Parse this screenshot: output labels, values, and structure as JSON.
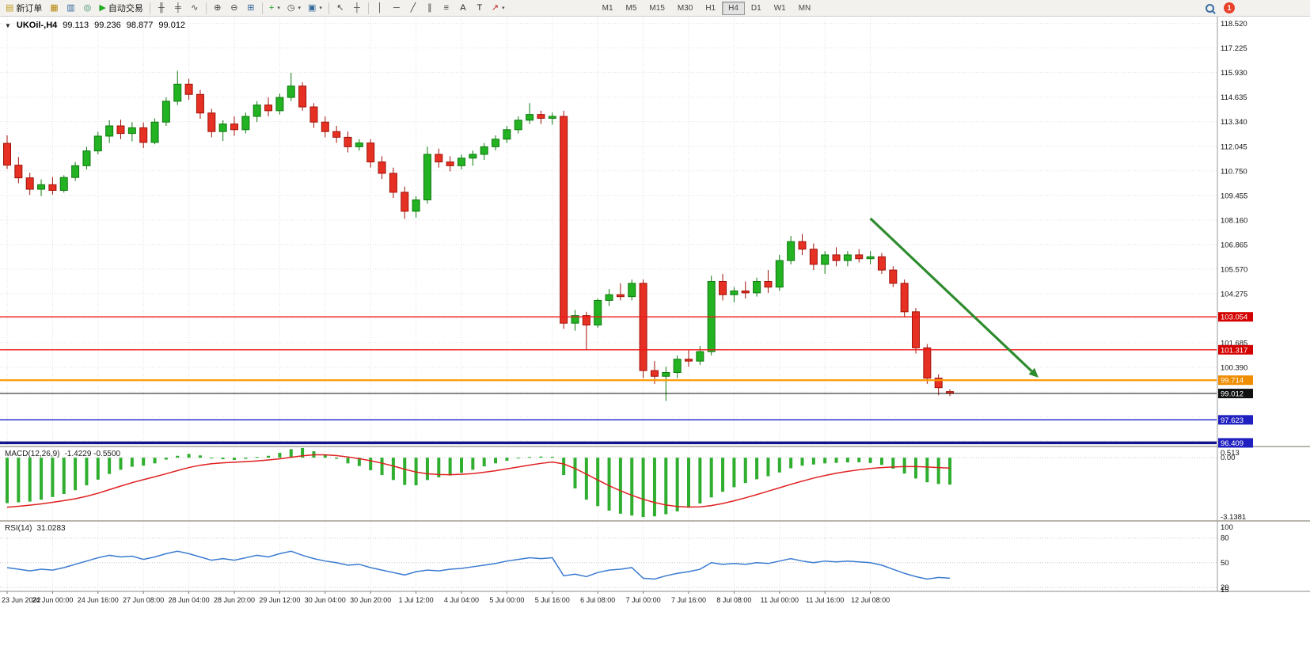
{
  "toolbar": {
    "timeframes": [
      "M1",
      "M5",
      "M15",
      "M30",
      "H1",
      "H4",
      "D1",
      "W1",
      "MN"
    ],
    "active_timeframe": "H4",
    "notification_count": "1",
    "buttons": [
      {
        "name": "new-order-button",
        "icon": "new-order-icon",
        "glyph": "▤",
        "color": "#c09a1a",
        "label": "新订单"
      },
      {
        "name": "charts-profile-button",
        "icon": "profiles-icon",
        "glyph": "▦",
        "color": "#b8860b"
      },
      {
        "name": "market-watch-button",
        "icon": "market-watch-icon",
        "glyph": "▥",
        "color": "#33669a"
      },
      {
        "name": "navigator-button",
        "icon": "navigator-icon",
        "glyph": "◎",
        "color": "#2e8b57"
      },
      {
        "name": "autotrading-button",
        "icon": "autotrading-play-icon",
        "glyph": "▶",
        "color": "#1faa1f",
        "label": "自动交易"
      },
      {
        "sep": true
      },
      {
        "name": "bar-chart-button",
        "icon": "bar-chart-icon",
        "glyph": "╫",
        "color": "#444"
      },
      {
        "name": "candlestick-chart-button",
        "icon": "candlestick-icon",
        "glyph": "╪",
        "color": "#444"
      },
      {
        "name": "line-chart-button",
        "icon": "line-chart-icon",
        "glyph": "∿",
        "color": "#444"
      },
      {
        "sep": true
      },
      {
        "name": "zoom-in-button",
        "icon": "zoom-in-icon",
        "glyph": "⊕",
        "color": "#444"
      },
      {
        "name": "zoom-out-button",
        "icon": "zoom-out-icon",
        "glyph": "⊖",
        "color": "#444"
      },
      {
        "name": "tile-windows-button",
        "icon": "tile-windows-icon",
        "glyph": "⊞",
        "color": "#33669a"
      },
      {
        "sep": true
      },
      {
        "name": "indicators-button",
        "icon": "indicators-plus-icon",
        "glyph": "+",
        "color": "#1f9e1f",
        "dd": true
      },
      {
        "name": "periods-button",
        "icon": "clock-icon",
        "glyph": "◷",
        "color": "#444",
        "dd": true
      },
      {
        "name": "templates-button",
        "icon": "template-icon",
        "glyph": "▣",
        "color": "#33669a",
        "dd": true
      },
      {
        "sep": true
      },
      {
        "name": "cursor-button",
        "icon": "cursor-arrow-icon",
        "glyph": "↖",
        "color": "#444"
      },
      {
        "name": "crosshair-button",
        "icon": "crosshair-icon",
        "glyph": "┼",
        "color": "#444"
      },
      {
        "sep": true
      },
      {
        "name": "vertical-line-button",
        "icon": "vertical-line-icon",
        "glyph": "│",
        "color": "#444"
      },
      {
        "name": "horizontal-line-button",
        "icon": "horizontal-line-icon",
        "glyph": "─",
        "color": "#444"
      },
      {
        "name": "trendline-button",
        "icon": "trendline-icon",
        "glyph": "╱",
        "color": "#444"
      },
      {
        "name": "channel-button",
        "icon": "equidistant-channel-icon",
        "glyph": "∥",
        "color": "#444"
      },
      {
        "name": "fibonacci-button",
        "icon": "fibonacci-icon",
        "glyph": "≡",
        "color": "#444"
      },
      {
        "name": "text-button",
        "icon": "text-a-icon",
        "glyph": "A",
        "color": "#222"
      },
      {
        "name": "text-label-button",
        "icon": "text-label-icon",
        "glyph": "T",
        "color": "#222"
      },
      {
        "name": "shapes-button",
        "icon": "arrow-shapes-icon",
        "glyph": "↗",
        "color": "#bb2222",
        "dd": true
      }
    ]
  },
  "chart_data": {
    "type": "candlestick",
    "header": {
      "collapse_glyph": "▼",
      "symbol_period": "UKOil-,H4",
      "open": "99.113",
      "high": "99.236",
      "low": "98.877",
      "close": "99.012"
    },
    "price_axis": {
      "min": 96.26,
      "max": 118.88,
      "gridline_step": 1.295,
      "gridlines": [
        118.52,
        117.225,
        115.93,
        114.635,
        113.34,
        112.045,
        110.75,
        109.455,
        108.16,
        106.865,
        105.57,
        104.275,
        102.98,
        101.685,
        100.39,
        99.095,
        97.8,
        96.505
      ],
      "labels": [
        "118.520",
        "117.225",
        "115.930",
        "114.635",
        "113.340",
        "112.045",
        "110.750",
        "109.455",
        "108.160",
        "106.865",
        "105.570",
        "104.275",
        "101.685",
        "100.390"
      ]
    },
    "x_axis": {
      "label_every_n_bars": 4,
      "labels": [
        "23 Jun 2022",
        "24 Jun 00:00",
        "24 Jun 16:00",
        "27 Jun 08:00",
        "28 Jun 04:00",
        "28 Jun 20:00",
        "29 Jun 12:00",
        "30 Jun 04:00",
        "30 Jun 20:00",
        "1 Jul 12:00",
        "4 Jul 04:00",
        "5 Jul 00:00",
        "5 Jul 16:00",
        "6 Jul 08:00",
        "7 Jul 00:00",
        "7 Jul 16:00",
        "8 Jul 08:00",
        "11 Jul 00:00",
        "11 Jul 16:00",
        "12 Jul 08:00"
      ]
    },
    "candle_colors": {
      "up_fill": "#22b222",
      "up_border": "#0e7a0e",
      "down_fill": "#e63023",
      "down_border": "#a01208"
    },
    "ohlc": [
      [
        112.2,
        112.62,
        110.85,
        111.05
      ],
      [
        111.05,
        111.48,
        110.1,
        110.38
      ],
      [
        110.38,
        110.65,
        109.48,
        109.78
      ],
      [
        109.78,
        110.3,
        109.42,
        110.02
      ],
      [
        110.02,
        110.42,
        109.5,
        109.72
      ],
      [
        109.72,
        110.52,
        109.6,
        110.4
      ],
      [
        110.4,
        111.22,
        110.22,
        111.02
      ],
      [
        111.02,
        112.02,
        110.82,
        111.8
      ],
      [
        111.8,
        112.8,
        111.62,
        112.58
      ],
      [
        112.58,
        113.42,
        112.22,
        113.12
      ],
      [
        113.12,
        113.45,
        112.42,
        112.72
      ],
      [
        112.72,
        113.32,
        112.3,
        113.02
      ],
      [
        113.02,
        113.3,
        111.95,
        112.25
      ],
      [
        112.25,
        113.52,
        112.15,
        113.32
      ],
      [
        113.32,
        114.62,
        113.12,
        114.42
      ],
      [
        114.42,
        116.02,
        114.22,
        115.32
      ],
      [
        115.32,
        115.6,
        114.5,
        114.78
      ],
      [
        114.78,
        115.02,
        113.5,
        113.8
      ],
      [
        113.8,
        114.02,
        112.52,
        112.82
      ],
      [
        112.82,
        113.42,
        112.32,
        113.22
      ],
      [
        113.22,
        113.62,
        112.6,
        112.92
      ],
      [
        112.92,
        113.82,
        112.72,
        113.62
      ],
      [
        113.62,
        114.42,
        113.32,
        114.22
      ],
      [
        114.22,
        114.62,
        113.62,
        113.92
      ],
      [
        113.92,
        114.82,
        113.72,
        114.62
      ],
      [
        114.62,
        115.92,
        114.42,
        115.22
      ],
      [
        115.22,
        115.42,
        113.92,
        114.12
      ],
      [
        114.12,
        114.32,
        113.02,
        113.32
      ],
      [
        113.32,
        113.62,
        112.52,
        112.82
      ],
      [
        112.82,
        113.12,
        112.22,
        112.52
      ],
      [
        112.52,
        112.82,
        111.72,
        112.02
      ],
      [
        112.02,
        112.42,
        111.82,
        112.22
      ],
      [
        112.22,
        112.42,
        110.92,
        111.22
      ],
      [
        111.22,
        111.52,
        110.32,
        110.62
      ],
      [
        110.62,
        110.92,
        109.32,
        109.62
      ],
      [
        109.62,
        109.92,
        108.22,
        108.62
      ],
      [
        108.62,
        109.42,
        108.28,
        109.22
      ],
      [
        109.22,
        112.02,
        109.02,
        111.62
      ],
      [
        111.62,
        111.92,
        110.92,
        111.22
      ],
      [
        111.22,
        111.52,
        110.72,
        111.02
      ],
      [
        111.02,
        111.62,
        110.82,
        111.42
      ],
      [
        111.42,
        111.82,
        111.02,
        111.62
      ],
      [
        111.62,
        112.22,
        111.32,
        112.02
      ],
      [
        112.02,
        112.62,
        111.82,
        112.42
      ],
      [
        112.42,
        113.12,
        112.22,
        112.92
      ],
      [
        112.92,
        113.62,
        112.72,
        113.42
      ],
      [
        113.42,
        114.32,
        113.22,
        113.72
      ],
      [
        113.72,
        113.92,
        113.22,
        113.52
      ],
      [
        113.52,
        113.82,
        113.18,
        113.62
      ],
      [
        113.62,
        113.92,
        102.42,
        102.72
      ],
      [
        102.72,
        103.42,
        102.32,
        103.12
      ],
      [
        103.12,
        103.32,
        101.32,
        102.62
      ],
      [
        102.62,
        104.02,
        102.48,
        103.92
      ],
      [
        103.92,
        104.52,
        103.62,
        104.22
      ],
      [
        104.22,
        104.82,
        103.92,
        104.12
      ],
      [
        104.12,
        105.02,
        103.92,
        104.82
      ],
      [
        104.82,
        105.02,
        99.82,
        100.22
      ],
      [
        100.22,
        100.72,
        99.52,
        99.92
      ],
      [
        99.92,
        100.42,
        98.62,
        100.12
      ],
      [
        100.12,
        101.02,
        99.82,
        100.82
      ],
      [
        100.82,
        101.32,
        100.42,
        100.72
      ],
      [
        100.72,
        101.52,
        100.52,
        101.22
      ],
      [
        101.22,
        105.22,
        101.02,
        104.92
      ],
      [
        104.92,
        105.32,
        103.92,
        104.22
      ],
      [
        104.22,
        104.62,
        103.82,
        104.42
      ],
      [
        104.42,
        104.92,
        104.02,
        104.32
      ],
      [
        104.32,
        105.12,
        104.12,
        104.92
      ],
      [
        104.92,
        105.52,
        104.32,
        104.62
      ],
      [
        104.62,
        106.32,
        104.42,
        106.02
      ],
      [
        106.02,
        107.32,
        105.82,
        107.02
      ],
      [
        107.02,
        107.42,
        106.32,
        106.62
      ],
      [
        106.62,
        106.92,
        105.52,
        105.82
      ],
      [
        105.82,
        106.52,
        105.32,
        106.32
      ],
      [
        106.32,
        106.72,
        105.72,
        106.02
      ],
      [
        106.02,
        106.52,
        105.72,
        106.32
      ],
      [
        106.32,
        106.62,
        105.92,
        106.12
      ],
      [
        106.12,
        106.52,
        105.82,
        106.22
      ],
      [
        106.22,
        106.42,
        105.32,
        105.52
      ],
      [
        105.52,
        105.72,
        104.62,
        104.82
      ],
      [
        104.82,
        105.02,
        103.02,
        103.32
      ],
      [
        103.32,
        103.52,
        101.12,
        101.42
      ],
      [
        101.42,
        101.62,
        99.52,
        99.82
      ],
      [
        99.82,
        100.02,
        98.92,
        99.32
      ],
      [
        99.113,
        99.236,
        98.877,
        99.012
      ]
    ],
    "hlines": [
      {
        "price": 103.054,
        "label": "103.054",
        "color": "#f01818",
        "width": 1.4,
        "badge_bg": "#d40000"
      },
      {
        "price": 101.317,
        "label": "101.317",
        "color": "#f01818",
        "width": 1.4,
        "badge_bg": "#d40000"
      },
      {
        "price": 99.714,
        "label": "99.714",
        "color": "#ff9800",
        "width": 2.2,
        "badge_bg": "#ef8e00"
      },
      {
        "price": 97.623,
        "label": "97.623",
        "color": "#1c1ccc",
        "width": 1.4,
        "badge_bg": "#2020c0"
      },
      {
        "price": 96.409,
        "label": "96.409",
        "color": "#14148c",
        "width": 3.5,
        "badge_bg": "#2020c0"
      }
    ],
    "current_price": {
      "price": 99.012,
      "label": "99.012",
      "color": "#111111",
      "badge_bg": "#111111"
    },
    "trend_arrow": {
      "from_bar": 76,
      "from_price": 108.24,
      "to_bar": 90.8,
      "to_price": 99.85,
      "color": "#2e8b2e"
    },
    "macd": {
      "name": "MACD(12,26,9)",
      "values_text": "-1.4229 -0.5500",
      "range": [
        -3.3,
        0.55
      ],
      "histogram_color": "#2fae2f",
      "signal_color": "#e02020",
      "axis_labels": [
        {
          "text": "0.513",
          "value": 0.513
        },
        {
          "text": "0.00",
          "value": 0
        },
        {
          "text": "-3.1381",
          "value": -3.1381
        }
      ],
      "histogram": [
        -2.4,
        -2.36,
        -2.32,
        -2.22,
        -2.08,
        -1.92,
        -1.72,
        -1.46,
        -1.16,
        -0.86,
        -0.64,
        -0.48,
        -0.42,
        -0.3,
        -0.1,
        0.1,
        0.2,
        0.12,
        -0.02,
        -0.08,
        -0.12,
        -0.06,
        0.04,
        0.1,
        0.26,
        0.45,
        0.51,
        0.34,
        0.14,
        -0.06,
        -0.3,
        -0.44,
        -0.66,
        -0.92,
        -1.18,
        -1.44,
        -1.46,
        -1.18,
        -1.04,
        -0.94,
        -0.8,
        -0.64,
        -0.46,
        -0.3,
        -0.16,
        -0.04,
        0.04,
        0.06,
        0.05,
        -0.92,
        -1.62,
        -2.22,
        -2.56,
        -2.8,
        -2.96,
        -3.06,
        -3.1381,
        -3.1,
        -2.99,
        -2.84,
        -2.64,
        -2.42,
        -2.1,
        -1.8,
        -1.56,
        -1.34,
        -1.14,
        -0.98,
        -0.78,
        -0.56,
        -0.42,
        -0.36,
        -0.3,
        -0.27,
        -0.25,
        -0.24,
        -0.28,
        -0.38,
        -0.58,
        -0.84,
        -1.1,
        -1.3,
        -1.39,
        -1.4229
      ],
      "signal": [
        -2.62,
        -2.57,
        -2.51,
        -2.44,
        -2.36,
        -2.27,
        -2.17,
        -2.04,
        -1.88,
        -1.69,
        -1.5,
        -1.32,
        -1.16,
        -1.01,
        -0.85,
        -0.68,
        -0.52,
        -0.4,
        -0.32,
        -0.27,
        -0.24,
        -0.21,
        -0.17,
        -0.12,
        -0.06,
        0.02,
        0.1,
        0.15,
        0.15,
        0.11,
        0.04,
        -0.05,
        -0.16,
        -0.29,
        -0.44,
        -0.61,
        -0.76,
        -0.85,
        -0.89,
        -0.9,
        -0.88,
        -0.84,
        -0.77,
        -0.69,
        -0.59,
        -0.49,
        -0.39,
        -0.3,
        -0.23,
        -0.33,
        -0.57,
        -0.87,
        -1.18,
        -1.48,
        -1.75,
        -1.99,
        -2.2,
        -2.37,
        -2.5,
        -2.58,
        -2.61,
        -2.6,
        -2.53,
        -2.42,
        -2.28,
        -2.12,
        -1.95,
        -1.77,
        -1.59,
        -1.41,
        -1.24,
        -1.08,
        -0.94,
        -0.82,
        -0.72,
        -0.64,
        -0.57,
        -0.52,
        -0.49,
        -0.47,
        -0.47,
        -0.49,
        -0.52,
        -0.55
      ]
    },
    "rsi": {
      "name": "RSI(14)",
      "value_text": "31.0283",
      "range": [
        15,
        100
      ],
      "levels": [
        80,
        50,
        20
      ],
      "line_color": "#3a7bd0",
      "axis_labels": [
        {
          "text": "100",
          "value": 100
        },
        {
          "text": "80",
          "value": 80
        },
        {
          "text": "50",
          "value": 50
        },
        {
          "text": "20",
          "value": 20
        },
        {
          "text": "15",
          "value": 15
        }
      ],
      "values": [
        44,
        42,
        40,
        42,
        41,
        44,
        48,
        52,
        56,
        59,
        57,
        58,
        54,
        57,
        61,
        64,
        61,
        57,
        53,
        55,
        53,
        56,
        59,
        57,
        61,
        64,
        59,
        55,
        52,
        50,
        47,
        48,
        44,
        41,
        38,
        35,
        39,
        41,
        40,
        42,
        43,
        45,
        47,
        49,
        52,
        54,
        56,
        55,
        56,
        34,
        36,
        33,
        38,
        41,
        42,
        44,
        31,
        30,
        34,
        37,
        39,
        42,
        50,
        48,
        49,
        48,
        50,
        49,
        52,
        55,
        52,
        50,
        52,
        51,
        52,
        51,
        50,
        47,
        42,
        37,
        33,
        30,
        32,
        31.03
      ]
    }
  }
}
